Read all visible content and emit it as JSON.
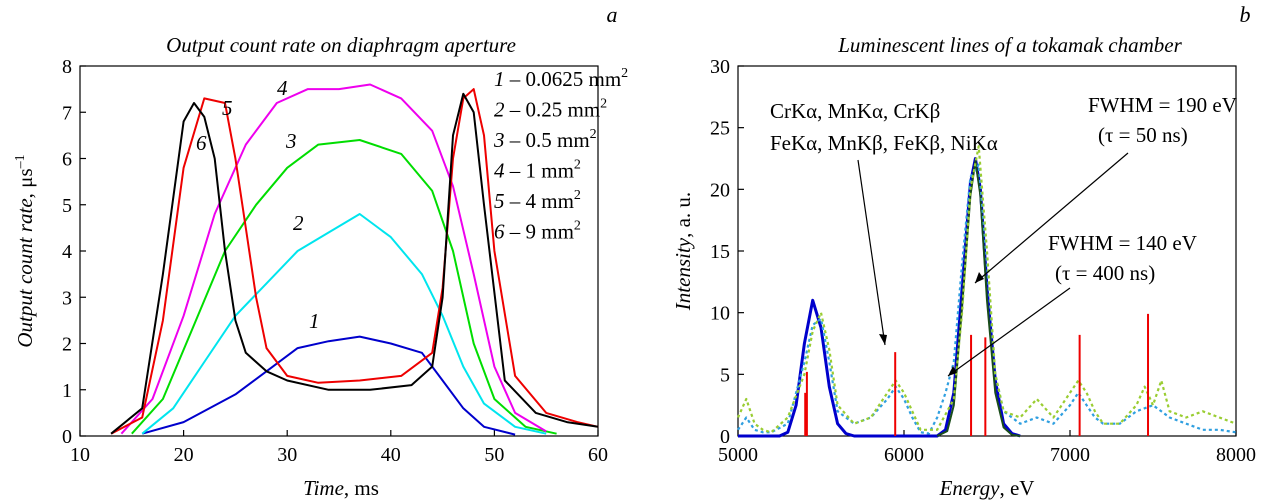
{
  "left_chart": {
    "letter": "a",
    "title": "Output count rate on diaphragm aperture",
    "xlabel_main": "Time",
    "xlabel_unit": ", ms",
    "ylabel_main": "Output count rate",
    "ylabel_unit": ", μs",
    "ylabel_exp": "–1",
    "legend": [
      {
        "num": "1",
        "text": " – 0.0625 mm",
        "sup": "2"
      },
      {
        "num": "2",
        "text": " – 0.25 mm",
        "sup": "2"
      },
      {
        "num": "3",
        "text": " – 0.5 mm",
        "sup": "2"
      },
      {
        "num": "4",
        "text": " – 1 mm",
        "sup": "2"
      },
      {
        "num": "5",
        "text": " – 4 mm",
        "sup": "2"
      },
      {
        "num": "6",
        "text": " – 9 mm",
        "sup": "2"
      }
    ]
  },
  "right_chart": {
    "letter": "b",
    "title": "Luminescent lines of a tokamak chamber",
    "xlabel_main": "Energy",
    "xlabel_unit": ", eV",
    "ylabel_main": "Intensity",
    "ylabel_unit": ", a. u.",
    "annot_line1": "CrKα, MnKα, CrKβ",
    "annot_line2": "FeKα, MnKβ, FeKβ, NiKα",
    "fwhm1": "FWHM = 190 eV",
    "fwhm1_tau": "(τ = 50 ns)",
    "fwhm2": "FWHM = 140 eV",
    "fwhm2_tau": "(τ = 400 ns)"
  },
  "chart_data": [
    {
      "type": "line",
      "title": "Output count rate on diaphragm aperture",
      "xlabel": "Time, ms",
      "ylabel": "Output count rate, μs–1",
      "xlim": [
        10,
        60
      ],
      "ylim": [
        0,
        8
      ],
      "xticks": [
        10,
        20,
        30,
        40,
        50,
        60
      ],
      "yticks": [
        0,
        1,
        2,
        3,
        4,
        5,
        6,
        7,
        8
      ],
      "legend_position": "top-right",
      "series": [
        {
          "name": "1",
          "color": "#0000cc",
          "x": [
            16,
            20,
            25,
            28,
            31,
            34,
            37,
            40,
            43,
            45,
            47,
            49,
            52
          ],
          "y": [
            0.05,
            0.3,
            0.9,
            1.4,
            1.9,
            2.05,
            2.15,
            2.0,
            1.8,
            1.2,
            0.6,
            0.2,
            0.03
          ]
        },
        {
          "name": "2",
          "color": "#00e5ee",
          "x": [
            16,
            19,
            22,
            25,
            28,
            31,
            34,
            37,
            40,
            43,
            45,
            47,
            49,
            52,
            55
          ],
          "y": [
            0.05,
            0.6,
            1.6,
            2.6,
            3.3,
            4.0,
            4.4,
            4.8,
            4.3,
            3.5,
            2.6,
            1.5,
            0.7,
            0.2,
            0.05
          ]
        },
        {
          "name": "3",
          "color": "#00dd00",
          "x": [
            15,
            18,
            21,
            24,
            27,
            30,
            33,
            37,
            41,
            44,
            46,
            48,
            50,
            53,
            56
          ],
          "y": [
            0.05,
            0.8,
            2.4,
            4.0,
            5.0,
            5.8,
            6.3,
            6.4,
            6.1,
            5.3,
            4.0,
            2.0,
            0.8,
            0.2,
            0.05
          ]
        },
        {
          "name": "4",
          "color": "#ee00ee",
          "x": [
            14,
            17,
            20,
            23,
            26,
            29,
            32,
            35,
            38,
            41,
            44,
            46,
            48,
            50,
            52,
            55
          ],
          "y": [
            0.05,
            0.8,
            2.6,
            4.8,
            6.3,
            7.2,
            7.5,
            7.5,
            7.6,
            7.3,
            6.6,
            5.4,
            3.5,
            1.5,
            0.5,
            0.1
          ]
        },
        {
          "name": "5",
          "color": "#ee0000",
          "x": [
            13,
            16,
            18,
            20,
            22,
            24,
            25,
            26,
            27,
            28,
            30,
            33,
            37,
            41,
            44,
            45,
            46,
            47,
            48,
            49,
            50,
            52,
            55,
            58,
            60
          ],
          "y": [
            0.05,
            0.4,
            2.5,
            5.8,
            7.3,
            7.2,
            6.0,
            4.5,
            3.0,
            1.9,
            1.3,
            1.15,
            1.2,
            1.3,
            1.8,
            3.2,
            6.0,
            7.3,
            7.5,
            6.5,
            4.0,
            1.3,
            0.5,
            0.3,
            0.2
          ]
        },
        {
          "name": "6",
          "color": "#000000",
          "x": [
            13,
            16,
            18,
            20,
            21,
            22,
            23,
            24,
            25,
            26,
            28,
            30,
            34,
            38,
            42,
            44,
            45,
            46,
            47,
            48,
            49,
            51,
            54,
            57,
            60
          ],
          "y": [
            0.05,
            0.6,
            3.5,
            6.8,
            7.2,
            6.9,
            6.0,
            4.0,
            2.5,
            1.8,
            1.4,
            1.2,
            1.0,
            1.0,
            1.1,
            1.5,
            3.0,
            6.5,
            7.4,
            7.0,
            5.0,
            1.2,
            0.5,
            0.3,
            0.2
          ]
        }
      ]
    },
    {
      "type": "line",
      "title": "Luminescent lines of a tokamak chamber",
      "xlabel": "Energy, eV",
      "ylabel": "Intensity, a. u.",
      "xlim": [
        5000,
        8000
      ],
      "ylim": [
        0,
        30
      ],
      "xticks": [
        5000,
        6000,
        7000,
        8000
      ],
      "yticks": [
        0,
        5,
        10,
        15,
        20,
        25,
        30
      ],
      "series": [
        {
          "color": "#0000cc",
          "x": [
            5000,
            5250,
            5300,
            5350,
            5400,
            5450,
            5500,
            5550,
            5600,
            5650,
            5700,
            6200,
            6250,
            6300,
            6350,
            6400,
            6430,
            6460,
            6500,
            6550,
            6600,
            6650,
            6700
          ],
          "y": [
            0,
            0,
            0.3,
            2.5,
            7.5,
            11.0,
            8.8,
            4.0,
            1.0,
            0.2,
            0,
            0,
            0.5,
            3.5,
            12.0,
            20.5,
            22.5,
            20.0,
            12.0,
            4.5,
            1.0,
            0.2,
            0
          ]
        },
        {
          "color": "#1a4d1a",
          "x": [
            6200,
            6260,
            6300,
            6350,
            6400,
            6430,
            6460,
            6500,
            6550,
            6600,
            6650,
            6700
          ],
          "y": [
            0,
            0.4,
            2.5,
            10.5,
            19.5,
            22.3,
            19.5,
            11.0,
            3.5,
            0.7,
            0.1,
            0
          ]
        },
        {
          "color": "#2f9fe0",
          "x": [
            5000,
            5050,
            5100,
            5150,
            5200,
            5300,
            5400,
            5450,
            5500,
            5550,
            5600,
            5700,
            5800,
            5900,
            5950,
            6000,
            6050,
            6100,
            6150,
            6200,
            6250,
            6300,
            6350,
            6400,
            6450,
            6500,
            6550,
            6600,
            6700,
            6800,
            6900,
            7000,
            7050,
            7100,
            7150,
            7200,
            7300,
            7400,
            7500,
            7550,
            7600,
            7700,
            7800,
            7900,
            8000
          ],
          "y": [
            0.5,
            1.5,
            0.5,
            0.3,
            0.3,
            1.0,
            6.0,
            9.0,
            9.5,
            6.0,
            2.0,
            1.0,
            1.5,
            3.0,
            4.0,
            3.0,
            1.5,
            0.3,
            0.2,
            1.5,
            3.5,
            6.0,
            14.0,
            21.0,
            22.0,
            14.0,
            5.0,
            2.0,
            1.0,
            1.5,
            1.0,
            2.5,
            3.5,
            2.5,
            1.5,
            1.0,
            1.0,
            2.0,
            2.5,
            2.0,
            1.5,
            1.0,
            0.5,
            0.5,
            0.3
          ]
        },
        {
          "color": "#9acd32",
          "x": [
            5000,
            5050,
            5100,
            5150,
            5200,
            5300,
            5400,
            5450,
            5500,
            5550,
            5600,
            5700,
            5800,
            5900,
            5950,
            6000,
            6050,
            6100,
            6200,
            6300,
            6350,
            6400,
            6450,
            6500,
            6550,
            6600,
            6700,
            6800,
            6900,
            7000,
            7050,
            7100,
            7150,
            7200,
            7300,
            7400,
            7450,
            7500,
            7550,
            7600,
            7700,
            7800,
            7900,
            8000
          ],
          "y": [
            1.5,
            3.0,
            1.0,
            0.5,
            0.3,
            1.5,
            5.0,
            8.5,
            10.0,
            7.0,
            2.5,
            1.0,
            1.5,
            3.5,
            4.5,
            3.5,
            2.0,
            0.5,
            0.5,
            3.0,
            10.0,
            20.0,
            23.5,
            15.0,
            5.0,
            2.0,
            1.5,
            3.0,
            1.5,
            3.5,
            4.5,
            3.5,
            2.0,
            1.0,
            1.0,
            2.5,
            4.0,
            2.5,
            4.5,
            2.0,
            1.5,
            2.0,
            1.5,
            1.0
          ]
        }
      ],
      "lines": [
        {
          "x": 5405,
          "y": 3.5
        },
        {
          "x": 5415,
          "y": 5.2
        },
        {
          "x": 5947,
          "y": 6.8
        },
        {
          "x": 6404,
          "y": 8.2
        },
        {
          "x": 6490,
          "y": 8.0
        },
        {
          "x": 7058,
          "y": 8.2
        },
        {
          "x": 7470,
          "y": 9.9
        }
      ]
    }
  ]
}
